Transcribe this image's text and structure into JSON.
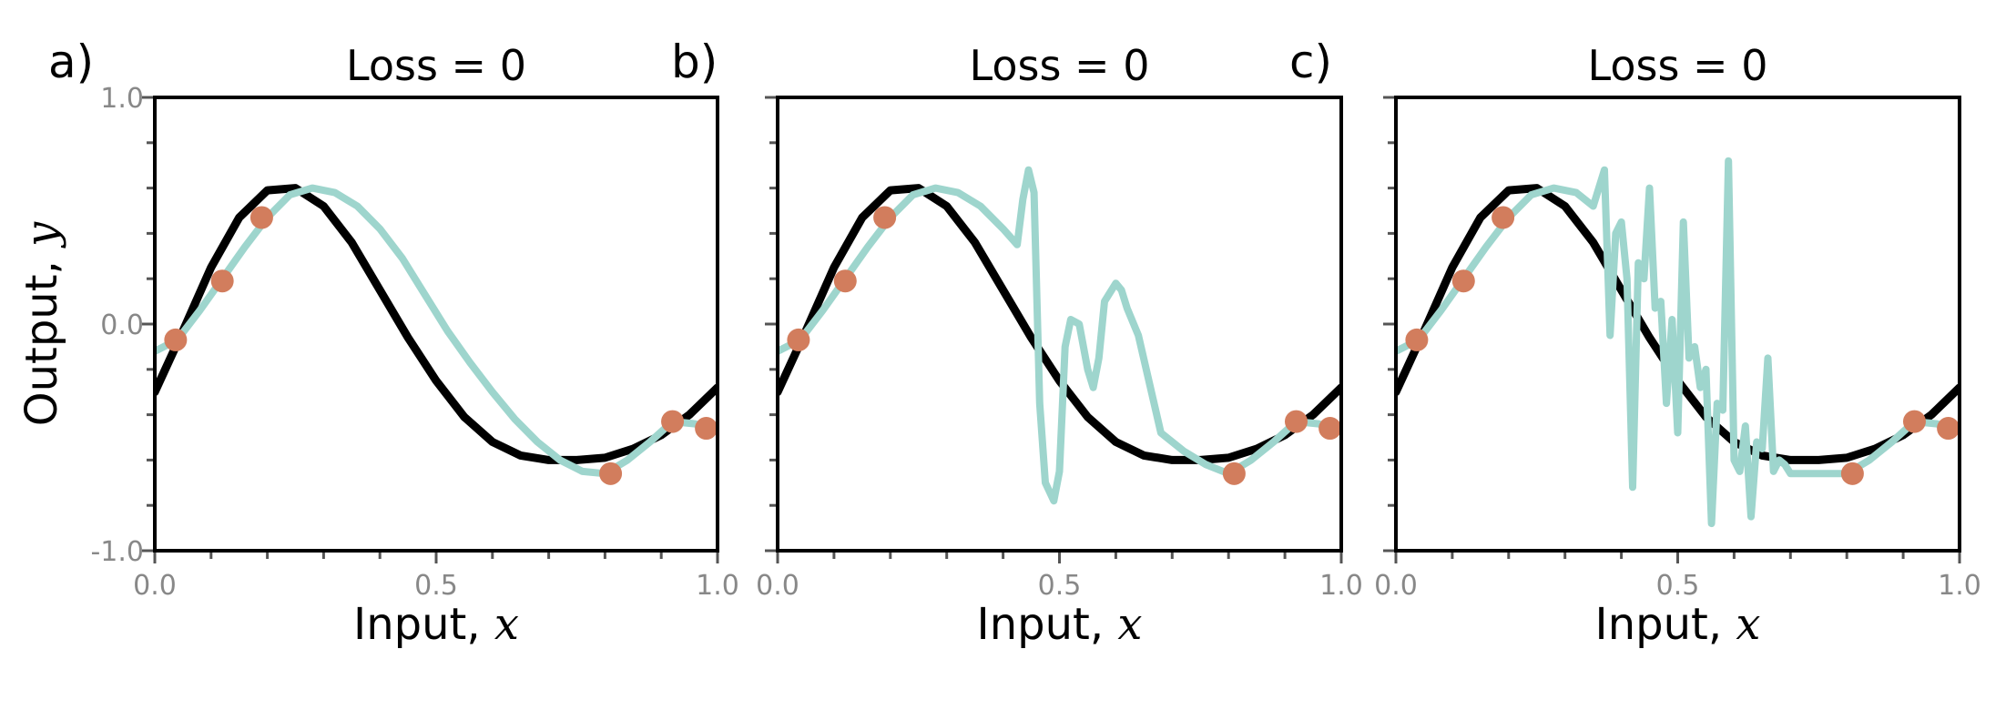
{
  "chart_data": [
    {
      "type": "line",
      "panel_label": "a)",
      "title": "Loss = 0",
      "xlabel_text": "Input, ",
      "xlabel_var": "x",
      "ylabel_text": "Output, ",
      "ylabel_var": "y",
      "xlim": [
        0.0,
        1.0
      ],
      "ylim": [
        -1.0,
        1.0
      ],
      "xticks": [
        0.0,
        0.5,
        1.0
      ],
      "xtick_labels": [
        "0.0",
        "0.5",
        "1.0"
      ],
      "yticks": [
        -1.0,
        0.0,
        1.0
      ],
      "ytick_labels": [
        "-1.0",
        "0.0",
        "1.0"
      ],
      "colors": {
        "true_function": "#000000",
        "model": "#9ed5cd",
        "data": "#d27d5d"
      },
      "true_function": {
        "x": [
          0.0,
          0.05,
          0.1,
          0.15,
          0.2,
          0.25,
          0.3,
          0.35,
          0.4,
          0.45,
          0.5,
          0.55,
          0.6,
          0.65,
          0.7,
          0.75,
          0.8,
          0.85,
          0.9,
          0.95,
          1.0
        ],
        "y": [
          -0.3,
          -0.03,
          0.25,
          0.47,
          0.59,
          0.6,
          0.52,
          0.36,
          0.15,
          -0.06,
          -0.25,
          -0.41,
          -0.52,
          -0.58,
          -0.6,
          -0.6,
          -0.59,
          -0.55,
          -0.49,
          -0.4,
          -0.28
        ]
      },
      "model": {
        "x": [
          0.0,
          0.04,
          0.08,
          0.12,
          0.16,
          0.2,
          0.24,
          0.28,
          0.32,
          0.36,
          0.4,
          0.44,
          0.48,
          0.52,
          0.56,
          0.6,
          0.64,
          0.68,
          0.72,
          0.76,
          0.8,
          0.84,
          0.88,
          0.92,
          0.96,
          0.98,
          1.0
        ],
        "y": [
          -0.12,
          -0.07,
          0.06,
          0.2,
          0.34,
          0.47,
          0.57,
          0.6,
          0.58,
          0.52,
          0.42,
          0.29,
          0.13,
          -0.03,
          -0.17,
          -0.3,
          -0.42,
          -0.52,
          -0.6,
          -0.65,
          -0.66,
          -0.6,
          -0.52,
          -0.43,
          -0.44,
          -0.46,
          -0.46
        ]
      },
      "points": {
        "x": [
          0.037,
          0.12,
          0.19,
          0.81,
          0.92,
          0.98
        ],
        "y": [
          -0.07,
          0.19,
          0.47,
          -0.66,
          -0.43,
          -0.46
        ]
      }
    },
    {
      "type": "line",
      "panel_label": "b)",
      "title": "Loss = 0",
      "xlabel_text": "Input, ",
      "xlabel_var": "x",
      "ylabel_text": "",
      "ylabel_var": "",
      "xlim": [
        0.0,
        1.0
      ],
      "ylim": [
        -1.0,
        1.0
      ],
      "xticks": [
        0.0,
        0.5,
        1.0
      ],
      "xtick_labels": [
        "0.0",
        "0.5",
        "1.0"
      ],
      "yticks": [
        -1.0,
        0.0,
        1.0
      ],
      "ytick_labels": [
        "",
        "",
        ""
      ],
      "colors": {
        "true_function": "#000000",
        "model": "#9ed5cd",
        "data": "#d27d5d"
      },
      "true_function": {
        "x": [
          0.0,
          0.05,
          0.1,
          0.15,
          0.2,
          0.25,
          0.3,
          0.35,
          0.4,
          0.45,
          0.5,
          0.55,
          0.6,
          0.65,
          0.7,
          0.75,
          0.8,
          0.85,
          0.9,
          0.95,
          1.0
        ],
        "y": [
          -0.3,
          -0.03,
          0.25,
          0.47,
          0.59,
          0.6,
          0.52,
          0.36,
          0.15,
          -0.06,
          -0.25,
          -0.41,
          -0.52,
          -0.58,
          -0.6,
          -0.6,
          -0.59,
          -0.55,
          -0.49,
          -0.4,
          -0.28
        ]
      },
      "model": {
        "x": [
          0.0,
          0.04,
          0.08,
          0.12,
          0.16,
          0.2,
          0.24,
          0.28,
          0.32,
          0.36,
          0.4,
          0.425,
          0.435,
          0.445,
          0.455,
          0.465,
          0.475,
          0.49,
          0.5,
          0.51,
          0.52,
          0.535,
          0.55,
          0.56,
          0.57,
          0.58,
          0.6,
          0.61,
          0.62,
          0.64,
          0.68,
          0.72,
          0.76,
          0.8,
          0.84,
          0.88,
          0.92,
          0.96,
          0.98,
          1.0
        ],
        "y": [
          -0.12,
          -0.07,
          0.06,
          0.2,
          0.34,
          0.47,
          0.57,
          0.6,
          0.58,
          0.52,
          0.42,
          0.35,
          0.55,
          0.68,
          0.58,
          -0.35,
          -0.7,
          -0.78,
          -0.65,
          -0.1,
          0.02,
          0.0,
          -0.2,
          -0.28,
          -0.15,
          0.1,
          0.18,
          0.15,
          0.07,
          -0.05,
          -0.48,
          -0.56,
          -0.62,
          -0.66,
          -0.6,
          -0.52,
          -0.43,
          -0.44,
          -0.46,
          -0.46
        ]
      },
      "points": {
        "x": [
          0.037,
          0.12,
          0.19,
          0.81,
          0.92,
          0.98
        ],
        "y": [
          -0.07,
          0.19,
          0.47,
          -0.66,
          -0.43,
          -0.46
        ]
      }
    },
    {
      "type": "line",
      "panel_label": "c)",
      "title": "Loss = 0",
      "xlabel_text": "Input, ",
      "xlabel_var": "x",
      "ylabel_text": "",
      "ylabel_var": "",
      "xlim": [
        0.0,
        1.0
      ],
      "ylim": [
        -1.0,
        1.0
      ],
      "xticks": [
        0.0,
        0.5,
        1.0
      ],
      "xtick_labels": [
        "0.0",
        "0.5",
        "1.0"
      ],
      "yticks": [
        -1.0,
        0.0,
        1.0
      ],
      "ytick_labels": [
        "",
        "",
        ""
      ],
      "colors": {
        "true_function": "#000000",
        "model": "#9ed5cd",
        "data": "#d27d5d"
      },
      "true_function": {
        "x": [
          0.0,
          0.05,
          0.1,
          0.15,
          0.2,
          0.25,
          0.3,
          0.35,
          0.4,
          0.45,
          0.5,
          0.55,
          0.6,
          0.65,
          0.7,
          0.75,
          0.8,
          0.85,
          0.9,
          0.95,
          1.0
        ],
        "y": [
          -0.3,
          -0.03,
          0.25,
          0.47,
          0.59,
          0.6,
          0.52,
          0.36,
          0.15,
          -0.06,
          -0.25,
          -0.41,
          -0.52,
          -0.58,
          -0.6,
          -0.6,
          -0.59,
          -0.55,
          -0.49,
          -0.4,
          -0.28
        ]
      },
      "model": {
        "x": [
          0.0,
          0.04,
          0.08,
          0.12,
          0.16,
          0.2,
          0.24,
          0.28,
          0.32,
          0.35,
          0.37,
          0.38,
          0.39,
          0.4,
          0.41,
          0.42,
          0.43,
          0.44,
          0.45,
          0.46,
          0.47,
          0.48,
          0.49,
          0.5,
          0.51,
          0.52,
          0.53,
          0.54,
          0.55,
          0.56,
          0.57,
          0.58,
          0.59,
          0.6,
          0.61,
          0.62,
          0.63,
          0.64,
          0.65,
          0.66,
          0.67,
          0.68,
          0.69,
          0.7,
          0.72,
          0.76,
          0.8,
          0.84,
          0.88,
          0.92,
          0.96,
          0.98,
          1.0
        ],
        "y": [
          -0.12,
          -0.07,
          0.06,
          0.2,
          0.34,
          0.47,
          0.57,
          0.6,
          0.58,
          0.52,
          0.68,
          -0.05,
          0.4,
          0.45,
          0.2,
          -0.72,
          0.27,
          0.2,
          0.6,
          0.07,
          0.1,
          -0.35,
          0.02,
          -0.48,
          0.45,
          -0.15,
          -0.1,
          -0.28,
          -0.2,
          -0.88,
          -0.35,
          -0.38,
          0.72,
          -0.6,
          -0.65,
          -0.45,
          -0.85,
          -0.52,
          -0.55,
          -0.15,
          -0.65,
          -0.6,
          -0.62,
          -0.66,
          -0.66,
          -0.66,
          -0.66,
          -0.6,
          -0.52,
          -0.43,
          -0.44,
          -0.46,
          -0.46
        ]
      },
      "points": {
        "x": [
          0.037,
          0.12,
          0.19,
          0.81,
          0.92,
          0.98
        ],
        "y": [
          -0.07,
          0.19,
          0.47,
          -0.66,
          -0.43,
          -0.46
        ]
      }
    }
  ]
}
